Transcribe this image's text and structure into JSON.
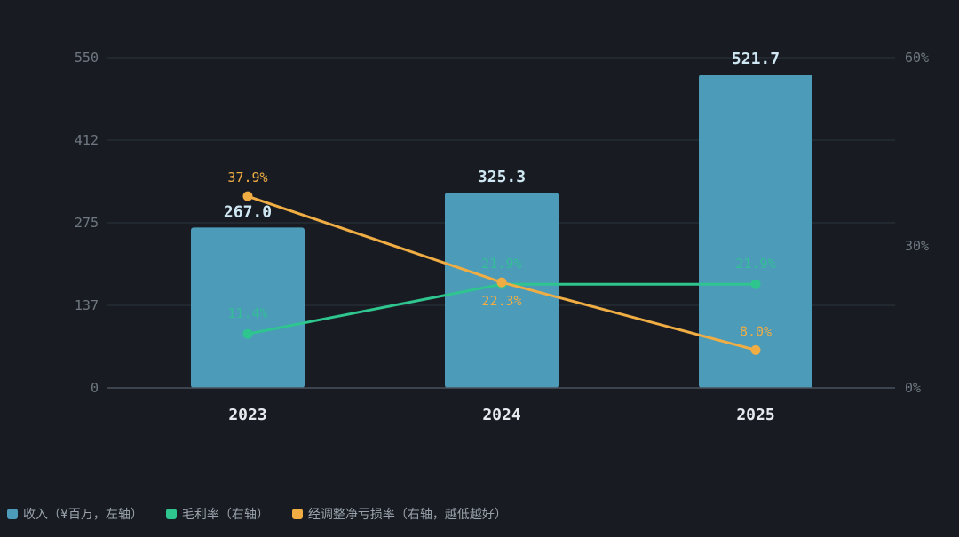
{
  "chart_data": {
    "type": "bar",
    "categories": [
      "2023",
      "2024",
      "2025"
    ],
    "series": [
      {
        "values": [
          267.0,
          325.3,
          521.7
        ],
        "labels": [
          "267.0",
          "325.3",
          "521.7"
        ],
        "color": "#4b9bb9",
        "axis": "left"
      },
      {
        "values": [
          11.4,
          21.9,
          21.9
        ],
        "labels": [
          "11.4%",
          "21.9%",
          "21.9%"
        ],
        "color": "#2fc58f",
        "axis": "right"
      },
      {
        "values": [
          37.9,
          22.3,
          8.0
        ],
        "labels": [
          "37.9%",
          "22.3%",
          "8.0%"
        ],
        "color": "#f0ad44",
        "axis": "right"
      }
    ],
    "left_axis": {
      "ylim": [
        0,
        550
      ],
      "ticks": [
        0,
        137.5,
        275,
        412.5,
        550
      ],
      "tick_labels": [
        "0",
        "137",
        "275",
        "412",
        "550"
      ]
    },
    "right_axis": {
      "ticks": [
        0,
        30,
        60
      ],
      "tick_labels": [
        "0%",
        "30%",
        "60%"
      ]
    },
    "grid": true,
    "legend_position": "bottom-left"
  },
  "legend": {
    "items": [
      {
        "label": "收入（¥百万，左轴）",
        "color": "#4b9bb9"
      },
      {
        "label": "毛利率（右轴）",
        "color": "#2fc58f"
      },
      {
        "label": "经调整净亏损率（右轴，越低越好）",
        "color": "#f0ad44"
      }
    ]
  }
}
